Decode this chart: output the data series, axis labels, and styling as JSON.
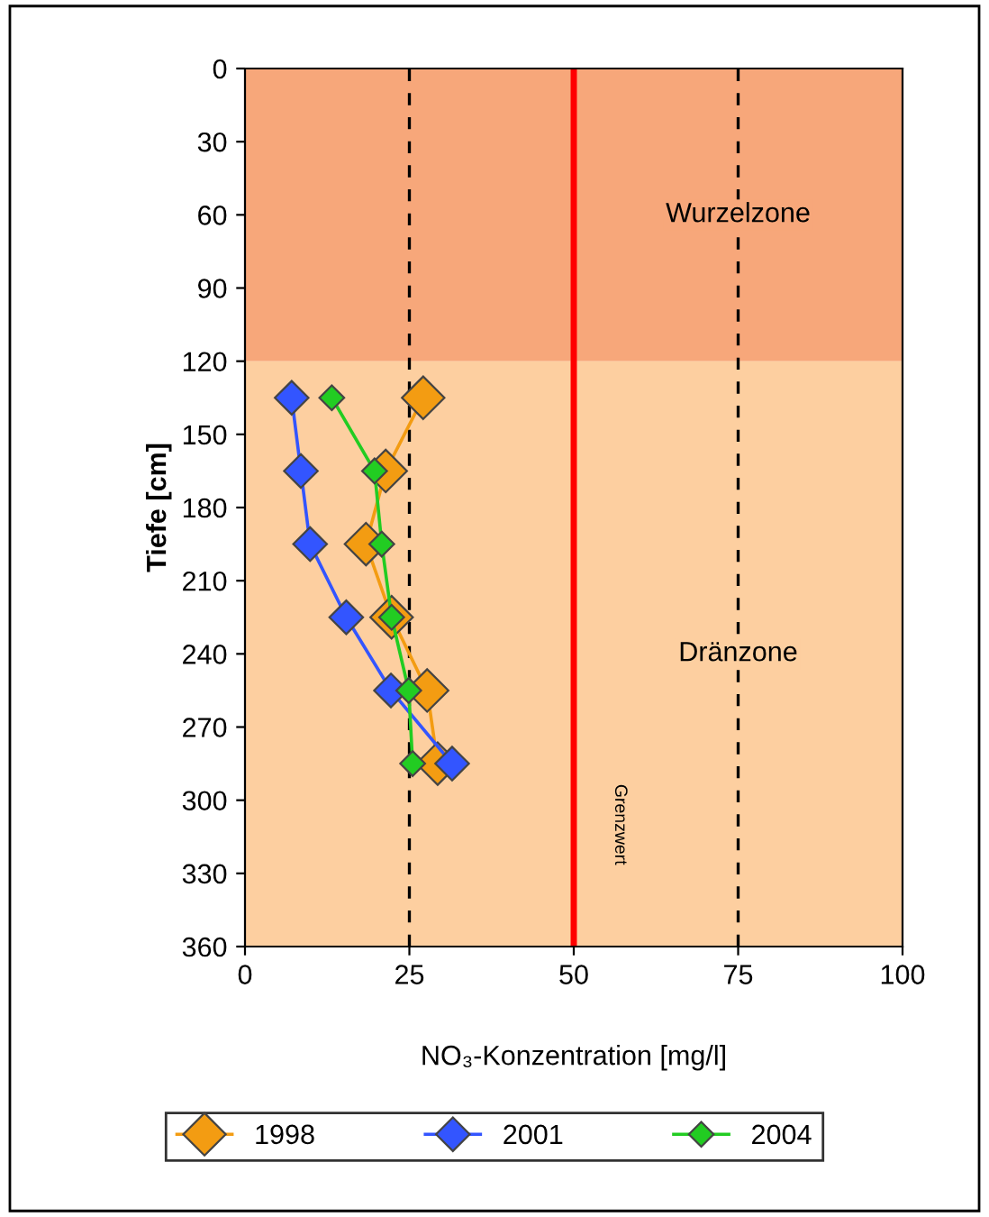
{
  "chart_data": {
    "type": "line",
    "xlabel": "NO₃-Konzentration [mg/l]",
    "ylabel": "Tiefe [cm]",
    "x": [
      135,
      165,
      195,
      225,
      255,
      285
    ],
    "series": [
      {
        "name": "1998",
        "color": "#f39c12",
        "values": [
          27.1,
          21.4,
          18.4,
          22.3,
          27.7,
          29.3
        ]
      },
      {
        "name": "2001",
        "color": "#3355ff",
        "values": [
          7.1,
          8.5,
          9.9,
          15.4,
          22.2,
          31.5
        ]
      },
      {
        "name": "2004",
        "color": "#22cc22",
        "values": [
          13.2,
          19.7,
          20.8,
          22.3,
          24.9,
          25.5
        ]
      }
    ],
    "orientation": "horizontal",
    "xlim": [
      0,
      100
    ],
    "xticks": [
      0,
      25,
      50,
      75,
      100
    ],
    "ylim": [
      360,
      0
    ],
    "yticks": [
      0,
      30,
      60,
      90,
      120,
      150,
      180,
      210,
      240,
      270,
      300,
      330,
      360
    ],
    "ref_lines": [
      {
        "axis": "x",
        "value": 25,
        "label": null,
        "color": "#000000",
        "line_style": "dashed"
      },
      {
        "axis": "x",
        "value": 50,
        "label": "Grenzwert",
        "color": "#ff0000",
        "line_style": "solid"
      },
      {
        "axis": "x",
        "value": 75,
        "label": null,
        "color": "#000000",
        "line_style": "dashed"
      }
    ],
    "bands": [
      {
        "axis": "y",
        "from": 0,
        "to": 120,
        "label": "Wurzelzone",
        "color": "#f7a77a"
      },
      {
        "axis": "y",
        "from": 120,
        "to": 360,
        "label": "Dränzone",
        "color": "#fdcfa0"
      }
    ],
    "marker": "diamond",
    "line_style": "solid",
    "grid": false,
    "legend": "bottom"
  }
}
